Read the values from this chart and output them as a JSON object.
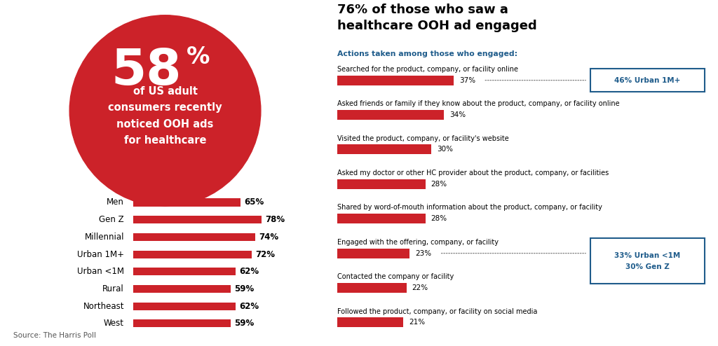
{
  "circle_pct": "58",
  "circle_pct_size": 58,
  "circle_text": "of US adult\nconsumers recently\nnoticed OOH ads\nfor healthcare",
  "circle_color": "#cc2229",
  "left_bars": {
    "labels": [
      "Men",
      "Gen Z",
      "Millennial",
      "Urban 1M+",
      "Urban <1M",
      "Rural",
      "Northeast",
      "West"
    ],
    "values": [
      65,
      78,
      74,
      72,
      62,
      59,
      62,
      59
    ]
  },
  "right_title_bold": "76% of those who saw a\nhealthcare OOH ad engaged",
  "right_subtitle": "Actions taken among those who engaged:",
  "right_bars": {
    "labels": [
      "Searched for the product, company, or facility online",
      "Asked friends or family if they know about the product, company, or facility online",
      "Visited the product, company, or facility's website",
      "Asked my doctor or other HC provider about the product, company, or facilities",
      "Shared by word-of-mouth information about the product, company, or facility",
      "Engaged with the offering, company, or facility",
      "Contacted the company or facility",
      "Followed the product, company, or facility on social media"
    ],
    "values": [
      37,
      34,
      30,
      28,
      28,
      23,
      22,
      21
    ]
  },
  "callout1_text": "46% Urban 1M+",
  "callout1_bar_index": 0,
  "callout2_text": "33% Urban <1M\n30% Gen Z",
  "callout2_bar_index": 5,
  "bar_color": "#cc2229",
  "dotted_color": "#888888",
  "callout_text_color": "#1f5c8b",
  "callout_border_color": "#1f5c8b",
  "source_text": "Source: The Harris Poll",
  "background_color": "#ffffff"
}
